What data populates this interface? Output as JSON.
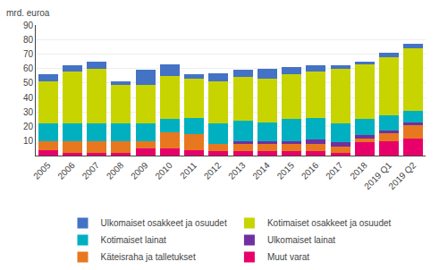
{
  "chart_data": {
    "type": "bar",
    "stacked": true,
    "grid": true,
    "legend": "bottom",
    "ylabel": "mrd. euroa",
    "categories": [
      "2005",
      "2006",
      "2007",
      "2008",
      "2009",
      "2010",
      "2011",
      "2012",
      "2013",
      "2014",
      "2015",
      "2016",
      "2017",
      "2018",
      "2019 Q1",
      "2019 Q2"
    ],
    "series": [
      {
        "name": "Muut varat",
        "color": "#E8006A",
        "values": [
          4,
          2,
          2,
          2,
          5,
          5,
          4,
          3,
          3,
          3,
          3,
          3,
          2,
          9,
          10,
          12
        ]
      },
      {
        "name": "Käteisraha ja talletukset",
        "color": "#E87820",
        "values": [
          6,
          8,
          8,
          8,
          5,
          11,
          11,
          5,
          5,
          5,
          5,
          5,
          4,
          3,
          6,
          9
        ]
      },
      {
        "name": "Ulkomaiset lainat",
        "color": "#7030A0",
        "values": [
          0,
          0,
          0,
          0,
          0,
          0,
          0,
          0,
          2,
          2,
          2,
          3,
          3,
          2,
          1,
          2
        ]
      },
      {
        "name": "Kotimaiset lainat",
        "color": "#00B0C0",
        "values": [
          12,
          12,
          12,
          12,
          12,
          9,
          11,
          14,
          14,
          13,
          15,
          15,
          13,
          11,
          11,
          8
        ]
      },
      {
        "name": "Kotimaiset osakkeet ja osuudet",
        "color": "#C8D400",
        "values": [
          29,
          36,
          38,
          27,
          27,
          30,
          27,
          29,
          30,
          30,
          31,
          32,
          38,
          38,
          40,
          43
        ]
      },
      {
        "name": "Ulkomaiset osakkeet ja osuudet",
        "color": "#4472C4",
        "values": [
          5,
          4,
          5,
          2,
          10,
          8,
          3,
          6,
          5,
          7,
          5,
          4,
          2,
          2,
          3,
          3
        ]
      }
    ],
    "ylim": [
      0,
      90
    ],
    "yticks": [
      10,
      20,
      30,
      40,
      50,
      60,
      70,
      80,
      90
    ]
  }
}
